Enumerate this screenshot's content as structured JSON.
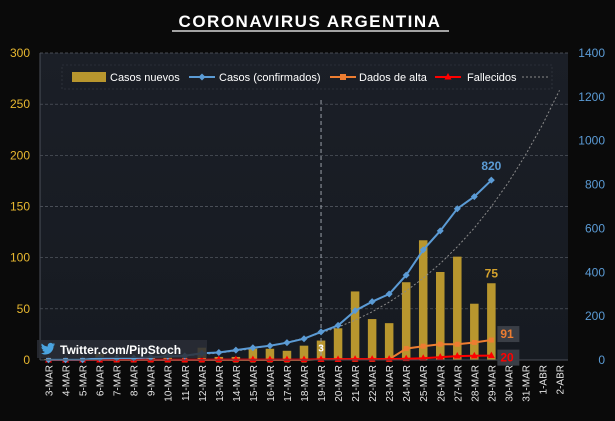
{
  "chart_data": {
    "type": "bar",
    "title": "CORONAVIRUS ARGENTINA",
    "categories": [
      "3-MAR",
      "4-MAR",
      "5-MAR",
      "6-MAR",
      "7-MAR",
      "8-MAR",
      "9-MAR",
      "10-MAR",
      "11-MAR",
      "12-MAR",
      "13-MAR",
      "14-MAR",
      "15-MAR",
      "16-MAR",
      "17-MAR",
      "18-MAR",
      "19-MAR",
      "20-MAR",
      "21-MAR",
      "22-MAR",
      "23-MAR",
      "24-MAR",
      "25-MAR",
      "26-MAR",
      "27-MAR",
      "28-MAR",
      "29-MAR",
      "30-MAR",
      "31-MAR",
      "1-ABR",
      "2-ABR"
    ],
    "y_left": {
      "min": 0,
      "max": 300,
      "ticks": [
        "0",
        "50",
        "100",
        "150",
        "200",
        "250",
        "300"
      ]
    },
    "y_right": {
      "min": 0,
      "max": 1400,
      "ticks": [
        "0",
        "200",
        "400",
        "600",
        "800",
        "1000",
        "1200",
        "1400"
      ]
    },
    "grid": true,
    "legend_position": "top",
    "series": [
      {
        "name": "Casos nuevos",
        "kind": "bar",
        "axis": "left",
        "color": "#b8962e",
        "values": [
          1,
          0,
          0,
          6,
          1,
          0,
          3,
          5,
          1,
          12,
          3,
          3,
          11,
          11,
          9,
          14,
          19,
          31,
          67,
          40,
          36,
          76,
          117,
          86,
          101,
          55,
          75,
          null,
          null,
          null,
          null
        ]
      },
      {
        "name": "Casos (confirmados)",
        "kind": "line",
        "axis": "right",
        "color": "#5b9bd5",
        "values": [
          1,
          1,
          1,
          8,
          9,
          9,
          12,
          17,
          19,
          31,
          34,
          45,
          56,
          65,
          79,
          97,
          128,
          158,
          225,
          266,
          301,
          387,
          502,
          589,
          690,
          745,
          820,
          null,
          null,
          null,
          null
        ]
      },
      {
        "name": "Dados de alta",
        "kind": "line",
        "axis": "right",
        "color": "#ed7d31",
        "values": [
          0,
          0,
          0,
          0,
          0,
          0,
          0,
          0,
          0,
          0,
          0,
          0,
          0,
          0,
          0,
          0,
          3,
          3,
          3,
          3,
          3,
          52,
          63,
          72,
          72,
          80,
          91,
          null,
          null,
          null,
          null
        ]
      },
      {
        "name": "Fallecidos",
        "kind": "line",
        "axis": "right",
        "color": "#ff0000",
        "values": [
          0,
          0,
          0,
          0,
          1,
          1,
          1,
          1,
          1,
          1,
          2,
          2,
          2,
          2,
          2,
          2,
          3,
          3,
          4,
          4,
          4,
          6,
          8,
          13,
          18,
          19,
          20,
          null,
          null,
          null,
          null
        ]
      },
      {
        "name": "",
        "kind": "trend",
        "axis": "right",
        "color": "#8a8a8a",
        "values": [
          0,
          0.5,
          1.5,
          3,
          5,
          7,
          10,
          14,
          19,
          25,
          32,
          41,
          52,
          65,
          81,
          100,
          123,
          150,
          182,
          220,
          264,
          315,
          373,
          440,
          516,
          602,
          700,
          810,
          934,
          1073,
          1230
        ]
      }
    ],
    "annotations": [
      {
        "text": "820",
        "series": "Casos (confirmados)",
        "category": "29-MAR",
        "color": "#5b9bd5"
      },
      {
        "text": "75",
        "series": "Casos nuevos",
        "category": "29-MAR",
        "color": "#d4a22c"
      },
      {
        "text": "91",
        "series": "Dados de alta",
        "category": "29-MAR",
        "color": "#ed7d31"
      },
      {
        "text": "20",
        "series": "Fallecidos",
        "category": "29-MAR",
        "color": "#ff0000"
      },
      {
        "text": "3",
        "series": "Fallecidos",
        "category": "19-MAR",
        "color": "#ffffff"
      }
    ],
    "vline_category": "19-MAR"
  },
  "watermark": {
    "text": "Twitter.com/PipStoch",
    "icon": "twitter-bird-icon"
  }
}
